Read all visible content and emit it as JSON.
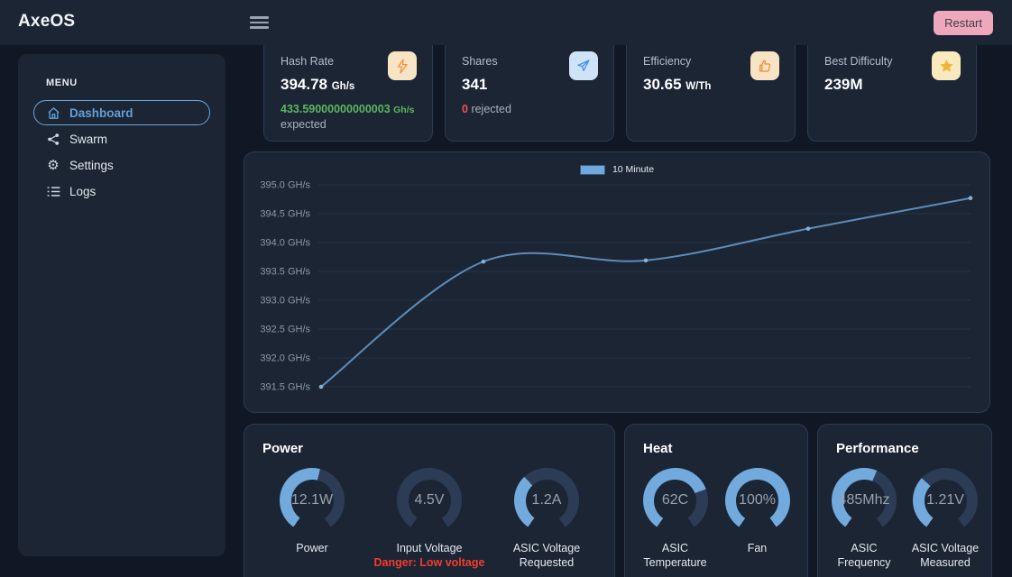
{
  "app": {
    "title": "AxeOS"
  },
  "topbar": {
    "restart_label": "Restart"
  },
  "sidebar": {
    "menu_label": "MENU",
    "items": [
      {
        "label": "Dashboard",
        "icon": "home-icon",
        "active": true
      },
      {
        "label": "Swarm",
        "icon": "share-nodes-icon",
        "active": false
      },
      {
        "label": "Settings",
        "icon": "gear-icon",
        "active": false
      },
      {
        "label": "Logs",
        "icon": "list-icon",
        "active": false
      }
    ]
  },
  "stats": {
    "hashrate": {
      "label": "Hash Rate",
      "value": "394.78",
      "unit": "Gh/s",
      "expected_value": "433.59000000000003",
      "expected_unit": "Gh/s",
      "expected_label": "expected",
      "icon": "bolt-icon"
    },
    "shares": {
      "label": "Shares",
      "value": "341",
      "rejected_count": "0",
      "rejected_label": "rejected",
      "icon": "send-icon"
    },
    "efficiency": {
      "label": "Efficiency",
      "value": "30.65",
      "unit": "W/Th",
      "icon": "thumbs-up-icon"
    },
    "best_difficulty": {
      "label": "Best Difficulty",
      "value": "239M",
      "icon": "star-icon"
    }
  },
  "chart_data": {
    "type": "line",
    "series": [
      {
        "name": "10 Minute",
        "values": [
          391.5,
          393.67,
          393.69,
          394.24,
          394.77
        ]
      }
    ],
    "title": "",
    "xlabel": "",
    "ylabel": "GH/s",
    "ylim": [
      391.5,
      395.0
    ],
    "yticks": [
      395.0,
      394.5,
      394.0,
      393.5,
      393.0,
      392.5,
      392.0,
      391.5
    ],
    "ytick_suffix": " GH/s",
    "grid": true,
    "legend_position": "top",
    "line_color": "#5d8cba",
    "point_color": "#84b1df",
    "smoothing": "catmull-rom"
  },
  "panels": [
    {
      "title": "Power",
      "gauges": [
        {
          "value": "12.1W",
          "label": "Power",
          "sublabel": "",
          "fill": 0.55
        },
        {
          "value": "4.5V",
          "label": "Input Voltage",
          "sublabel": "Danger: Low voltage",
          "fill": 0
        },
        {
          "value": "1.2A",
          "label": "ASIC Voltage Requested",
          "sublabel": "",
          "fill": 0.35
        }
      ]
    },
    {
      "title": "Heat",
      "gauges": [
        {
          "value": "62C",
          "label": "ASIC Temperature",
          "sublabel": "",
          "fill": 0.74
        },
        {
          "value": "100%",
          "label": "Fan",
          "sublabel": "",
          "fill": 1
        }
      ]
    },
    {
      "title": "Performance",
      "gauges": [
        {
          "value": "485Mhz",
          "label": "ASIC Frequency",
          "sublabel": "",
          "fill": 0.58
        },
        {
          "value": "1.21V",
          "label": "ASIC Voltage Measured",
          "sublabel": "",
          "fill": 0.34
        }
      ]
    }
  ],
  "colors": {
    "accent_blue": "#6ea8dc",
    "gauge_fill": "#72aade",
    "gauge_track": "#2d3c55",
    "panel_bg": "#1b2534",
    "page_bg": "#101826",
    "green": "#5db75f",
    "red": "#ef5350",
    "danger_red": "#f43b2e",
    "restart_pink": "#efa8bb",
    "tile_peach": "#f8e3c5",
    "tile_blue": "#cfe3f7",
    "tile_yellow": "#f9e9bc",
    "icon_orange": "#ee8f41",
    "icon_blue": "#4a92e0",
    "icon_gold": "#ecb53d",
    "grid_line": "#27334a",
    "tick_text": "#8d99a8"
  }
}
